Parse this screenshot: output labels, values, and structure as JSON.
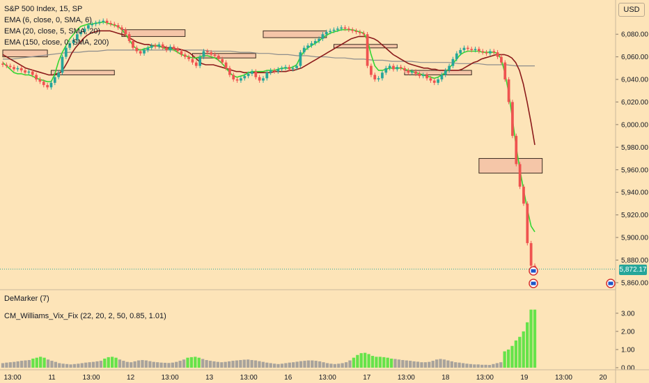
{
  "header": {
    "symbol_title": "S&P 500 Index, 15, SP",
    "indicators": [
      "EMA (6, close, 0, SMA, 6)",
      "EMA (20, close, 5, SMA, 20)",
      "EMA (150, close, 0, SMA, 200)"
    ],
    "currency_button": "USD"
  },
  "panes": {
    "demarker_label": "DeMarker (7)",
    "vixfix_label": "CM_Williams_Vix_Fix (22, 20, 2, 50, 0.85, 1.01)"
  },
  "last_price_label": "5,872.17",
  "colors": {
    "background": "#fde4b8",
    "bull": "#26a69a",
    "bear": "#ef5350",
    "ema_fast": "#33d633",
    "ema_mid": "#8b1a1a",
    "ema_slow": "#8c8c8c",
    "zone_fill": "#f5c6a8",
    "vix_high": "#66e34a",
    "vix_low": "#a8a39c"
  },
  "chart_data": {
    "type": "candlestick",
    "price_axis": {
      "ylim": [
        5855,
        6098
      ],
      "ticks": [
        "6,080.00",
        "6,060.00",
        "6,040.00",
        "6,020.00",
        "6,000.00",
        "5,980.00",
        "5,960.00",
        "5,940.00",
        "5,920.00",
        "5,900.00",
        "5,880.00",
        "5,860.00"
      ]
    },
    "x_ticks": [
      "13:00",
      "11",
      "13:00",
      "12",
      "13:00",
      "13",
      "13:00",
      "16",
      "13:00",
      "17",
      "13:00",
      "18",
      "13:00",
      "19",
      "13:00",
      "20"
    ],
    "closes": [
      6053,
      6052,
      6051,
      6049,
      6050,
      6048,
      6046,
      6047,
      6044,
      6040,
      6038,
      6035,
      6033,
      6037,
      6042,
      6046,
      6060,
      6068,
      6072,
      6075,
      6080,
      6082,
      6085,
      6088,
      6089,
      6090,
      6091,
      6092,
      6090,
      6089,
      6088,
      6086,
      6084,
      6080,
      6074,
      6068,
      6065,
      6063,
      6066,
      6068,
      6070,
      6069,
      6071,
      6068,
      6066,
      6069,
      6067,
      6065,
      6062,
      6060,
      6058,
      6055,
      6052,
      6060,
      6065,
      6064,
      6062,
      6061,
      6058,
      6055,
      6050,
      6044,
      6040,
      6039,
      6041,
      6043,
      6045,
      6047,
      6042,
      6039,
      6041,
      6046,
      6048,
      6047,
      6049,
      6050,
      6051,
      6049,
      6050,
      6052,
      6064,
      6068,
      6070,
      6072,
      6074,
      6076,
      6080,
      6082,
      6083,
      6084,
      6085,
      6086,
      6085,
      6084,
      6083,
      6082,
      6081,
      6080,
      6052,
      6044,
      6040,
      6041,
      6046,
      6050,
      6052,
      6049,
      6051,
      6050,
      6048,
      6046,
      6047,
      6045,
      6043,
      6044,
      6041,
      6039,
      6037,
      6040,
      6044,
      6048,
      6052,
      6058,
      6063,
      6066,
      6068,
      6067,
      6066,
      6067,
      6065,
      6064,
      6063,
      6065,
      6064,
      6060,
      6055,
      6040,
      6020,
      5990,
      5965,
      5945,
      5930,
      5895,
      5875,
      5872
    ],
    "ema_fast": [
      6055,
      6052,
      6049,
      6046,
      6045,
      6045,
      6044,
      6044,
      6043,
      6041,
      6040,
      6039,
      6038,
      6038,
      6045,
      6056,
      6064,
      6070,
      6076,
      6080,
      6084,
      6087,
      6088,
      6089,
      6089,
      6090,
      6090,
      6091,
      6090,
      6089,
      6088,
      6087,
      6084,
      6080,
      6075,
      6070,
      6067,
      6066,
      6067,
      6068,
      6069,
      6070,
      6070,
      6068,
      6067,
      6067,
      6066,
      6064,
      6062,
      6061,
      6060,
      6059,
      6059,
      6060,
      6061,
      6061,
      6060,
      6059,
      6057,
      6054,
      6050,
      6046,
      6043,
      6042,
      6043,
      6044,
      6046,
      6047,
      6047,
      6047,
      6047,
      6048,
      6048,
      6048,
      6049,
      6050,
      6050,
      6050,
      6051,
      6053,
      6060,
      6065,
      6068,
      6070,
      6072,
      6074,
      6077,
      6079,
      6081,
      6082,
      6083,
      6084,
      6084,
      6084,
      6084,
      6083,
      6082,
      6081,
      6075,
      6062,
      6052,
      6048,
      6048,
      6049,
      6050,
      6050,
      6050,
      6050,
      6049,
      6048,
      6047,
      6046,
      6045,
      6044,
      6043,
      6042,
      6041,
      6042,
      6044,
      6046,
      6050,
      6054,
      6058,
      6062,
      6064,
      6065,
      6065,
      6065,
      6065,
      6064,
      6064,
      6064,
      6064,
      6063,
      6058,
      6045,
      6028,
      6005,
      5980,
      5960,
      5942,
      5925,
      5910,
      5905
    ],
    "ema_mid": [
      6062,
      6060,
      6058,
      6056,
      6054,
      6052,
      6050,
      6049,
      6048,
      6047,
      6046,
      6045,
      6044,
      6044,
      6045,
      6046,
      6050,
      6056,
      6063,
      6068,
      6072,
      6076,
      6079,
      6081,
      6082,
      6083,
      6083,
      6083,
      6083,
      6082,
      6081,
      6080,
      6079,
      6077,
      6075,
      6073,
      6072,
      6071,
      6071,
      6070,
      6070,
      6069,
      6069,
      6068,
      6068,
      6067,
      6067,
      6066,
      6065,
      6063,
      6060,
      6057,
      6054,
      6053,
      6053,
      6053,
      6052,
      6051,
      6050,
      6049,
      6048,
      6047,
      6047,
      6046,
      6046,
      6046,
      6046,
      6046,
      6046,
      6046,
      6046,
      6047,
      6047,
      6047,
      6047,
      6048,
      6048,
      6049,
      6050,
      6052,
      6054,
      6056,
      6058,
      6060,
      6062,
      6064,
      6066,
      6068,
      6070,
      6072,
      6074,
      6076,
      6077,
      6078,
      6078,
      6078,
      6077,
      6076,
      6074,
      6071,
      6068,
      6065,
      6062,
      6060,
      6058,
      6056,
      6054,
      6053,
      6052,
      6051,
      6050,
      6050,
      6049,
      6049,
      6048,
      6048,
      6048,
      6048,
      6048,
      6048,
      6049,
      6051,
      6053,
      6055,
      6056,
      6058,
      6059,
      6060,
      6061,
      6062,
      6062,
      6062,
      6061,
      6059,
      6055,
      6048,
      6036,
      6020,
      6002,
      5982
    ],
    "ema_slow": [
      6058,
      6058,
      6059,
      6060,
      6061,
      6062,
      6063,
      6064,
      6064,
      6065,
      6065,
      6066,
      6066,
      6066,
      6066,
      6066,
      6066,
      6066,
      6066,
      6066,
      6066,
      6066,
      6065,
      6065,
      6065,
      6064,
      6064,
      6063,
      6063,
      6062,
      6062,
      6061,
      6061,
      6060,
      6060,
      6059,
      6059,
      6058,
      6058,
      6057,
      6057,
      6056,
      6056,
      6056,
      6055,
      6055,
      6055,
      6055,
      6054,
      6054,
      6054,
      6053,
      6053,
      6053,
      6052,
      6052,
      6052
    ],
    "zones": [
      {
        "x0": 0,
        "x1": 12,
        "y_top": 6066,
        "y_bot": 6060
      },
      {
        "x0": 13,
        "x1": 30,
        "y_top": 6048,
        "y_bot": 6044
      },
      {
        "x0": 32,
        "x1": 49,
        "y_top": 6084,
        "y_bot": 6078
      },
      {
        "x0": 51,
        "x1": 68,
        "y_top": 6063,
        "y_bot": 6059
      },
      {
        "x0": 70,
        "x1": 87,
        "y_top": 6083,
        "y_bot": 6077
      },
      {
        "x0": 89,
        "x1": 106,
        "y_top": 6071,
        "y_bot": 6068
      },
      {
        "x0": 108,
        "x1": 126,
        "y_top": 6048,
        "y_bot": 6044
      },
      {
        "x0": 128,
        "x1": 145,
        "y_top": 5970,
        "y_bot": 5957
      }
    ],
    "vix_axis": {
      "ylim": [
        0,
        3.3
      ],
      "ticks": [
        "3.00",
        "2.00",
        "1.00",
        "0.00"
      ]
    },
    "vix_values": [
      0.25,
      0.28,
      0.3,
      0.32,
      0.35,
      0.38,
      0.4,
      0.42,
      0.5,
      0.55,
      0.6,
      0.55,
      0.45,
      0.38,
      0.32,
      0.25,
      0.22,
      0.2,
      0.18,
      0.2,
      0.22,
      0.25,
      0.28,
      0.3,
      0.32,
      0.35,
      0.38,
      0.5,
      0.58,
      0.6,
      0.55,
      0.45,
      0.38,
      0.32,
      0.3,
      0.35,
      0.4,
      0.42,
      0.4,
      0.36,
      0.32,
      0.3,
      0.28,
      0.27,
      0.26,
      0.28,
      0.32,
      0.38,
      0.45,
      0.55,
      0.58,
      0.6,
      0.55,
      0.48,
      0.42,
      0.38,
      0.35,
      0.32,
      0.3,
      0.32,
      0.35,
      0.38,
      0.4,
      0.42,
      0.44,
      0.45,
      0.42,
      0.4,
      0.36,
      0.32,
      0.28,
      0.25,
      0.22,
      0.2,
      0.22,
      0.25,
      0.28,
      0.3,
      0.33,
      0.36,
      0.38,
      0.4,
      0.4,
      0.38,
      0.35,
      0.3,
      0.25,
      0.22,
      0.2,
      0.22,
      0.25,
      0.3,
      0.4,
      0.55,
      0.7,
      0.8,
      0.82,
      0.75,
      0.65,
      0.6,
      0.6,
      0.58,
      0.55,
      0.5,
      0.48,
      0.45,
      0.42,
      0.4,
      0.38,
      0.35,
      0.33,
      0.3,
      0.3,
      0.32,
      0.38,
      0.45,
      0.48,
      0.45,
      0.4,
      0.35,
      0.3,
      0.28,
      0.25,
      0.22,
      0.2,
      0.18,
      0.18,
      0.16,
      0.16,
      0.15,
      0.2,
      0.25,
      0.3,
      0.9,
      1.0,
      1.2,
      1.5,
      1.7,
      2.0,
      2.5,
      3.2,
      3.2
    ],
    "vix_high_threshold": 0.5
  }
}
